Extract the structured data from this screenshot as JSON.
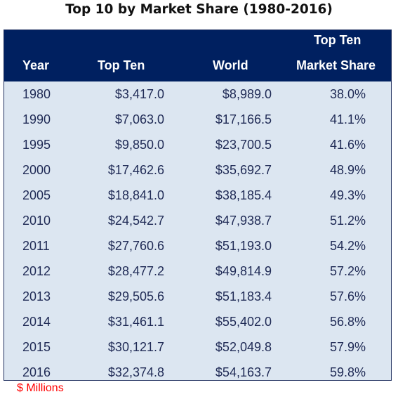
{
  "title": "Top 10 by Market Share (1980-2016)",
  "note": "$ Millions",
  "colors": {
    "header_bg": "#002060",
    "header_text": "#ffffff",
    "body_bg": "#dce6f1",
    "body_text": "#1f2a55",
    "note_text": "#ff0000"
  },
  "chart_data": {
    "type": "table",
    "title": "Top 10 by Market Share (1980-2016)",
    "columns": [
      "Year",
      "Top Ten",
      "World",
      "Top Ten Market Share"
    ],
    "header": {
      "year": "Year",
      "top_ten": "Top Ten",
      "world": "World",
      "share_line1": "Top Ten",
      "share_line2": "Market Share"
    },
    "rows": [
      {
        "year": "1980",
        "top_ten": "$3,417.0",
        "world": "$8,989.0",
        "share": "38.0%"
      },
      {
        "year": "1990",
        "top_ten": "$7,063.0",
        "world": "$17,166.5",
        "share": "41.1%"
      },
      {
        "year": "1995",
        "top_ten": "$9,850.0",
        "world": "$23,700.5",
        "share": "41.6%"
      },
      {
        "year": "2000",
        "top_ten": "$17,462.6",
        "world": "$35,692.7",
        "share": "48.9%"
      },
      {
        "year": "2005",
        "top_ten": "$18,841.0",
        "world": "$38,185.4",
        "share": "49.3%"
      },
      {
        "year": "2010",
        "top_ten": "$24,542.7",
        "world": "$47,938.7",
        "share": "51.2%"
      },
      {
        "year": "2011",
        "top_ten": "$27,760.6",
        "world": "$51,193.0",
        "share": "54.2%"
      },
      {
        "year": "2012",
        "top_ten": "$28,477.2",
        "world": "$49,814.9",
        "share": "57.2%"
      },
      {
        "year": "2013",
        "top_ten": "$29,505.6",
        "world": "$51,183.4",
        "share": "57.6%"
      },
      {
        "year": "2014",
        "top_ten": "$31,461.1",
        "world": "$55,402.0",
        "share": "56.8%"
      },
      {
        "year": "2015",
        "top_ten": "$30,121.7",
        "world": "$52,049.8",
        "share": "57.9%"
      },
      {
        "year": "2016",
        "top_ten": "$32,374.8",
        "world": "$54,163.7",
        "share": "59.8%"
      }
    ]
  }
}
